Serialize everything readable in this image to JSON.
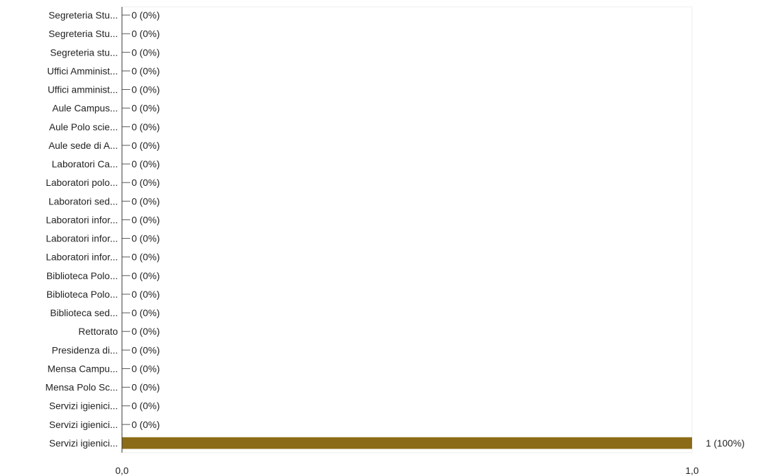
{
  "chart_data": {
    "type": "bar",
    "orientation": "horizontal",
    "categories": [
      "Segreteria Stu...",
      "Segreteria Stu...",
      "Segreteria stu...",
      "Uffici Amminist...",
      "Uffici amminist...",
      "Aule Campus...",
      "Aule Polo scie...",
      "Aule sede di A...",
      "Laboratori Ca...",
      "Laboratori polo...",
      "Laboratori sed...",
      "Laboratori infor...",
      "Laboratori infor...",
      "Laboratori infor...",
      "Biblioteca Polo...",
      "Biblioteca Polo...",
      "Biblioteca sed...",
      "Rettorato",
      "Presidenza di...",
      "Mensa Campu...",
      "Mensa Polo Sc...",
      "Servizi igienici...",
      "Servizi igienici...",
      "Servizi igienici..."
    ],
    "values": [
      0,
      0,
      0,
      0,
      0,
      0,
      0,
      0,
      0,
      0,
      0,
      0,
      0,
      0,
      0,
      0,
      0,
      0,
      0,
      0,
      0,
      0,
      0,
      1
    ],
    "data_labels": [
      "0 (0%)",
      "0 (0%)",
      "0 (0%)",
      "0 (0%)",
      "0 (0%)",
      "0 (0%)",
      "0 (0%)",
      "0 (0%)",
      "0 (0%)",
      "0 (0%)",
      "0 (0%)",
      "0 (0%)",
      "0 (0%)",
      "0 (0%)",
      "0 (0%)",
      "0 (0%)",
      "0 (0%)",
      "0 (0%)",
      "0 (0%)",
      "0 (0%)",
      "0 (0%)",
      "0 (0%)",
      "0 (0%)",
      "1 (100%)"
    ],
    "xlim": [
      0,
      1
    ],
    "x_ticks": [
      "0,0",
      "1,0"
    ],
    "bar_color": "#8B6B17",
    "axis_color": "#333333",
    "grid": false,
    "legend": "none"
  }
}
